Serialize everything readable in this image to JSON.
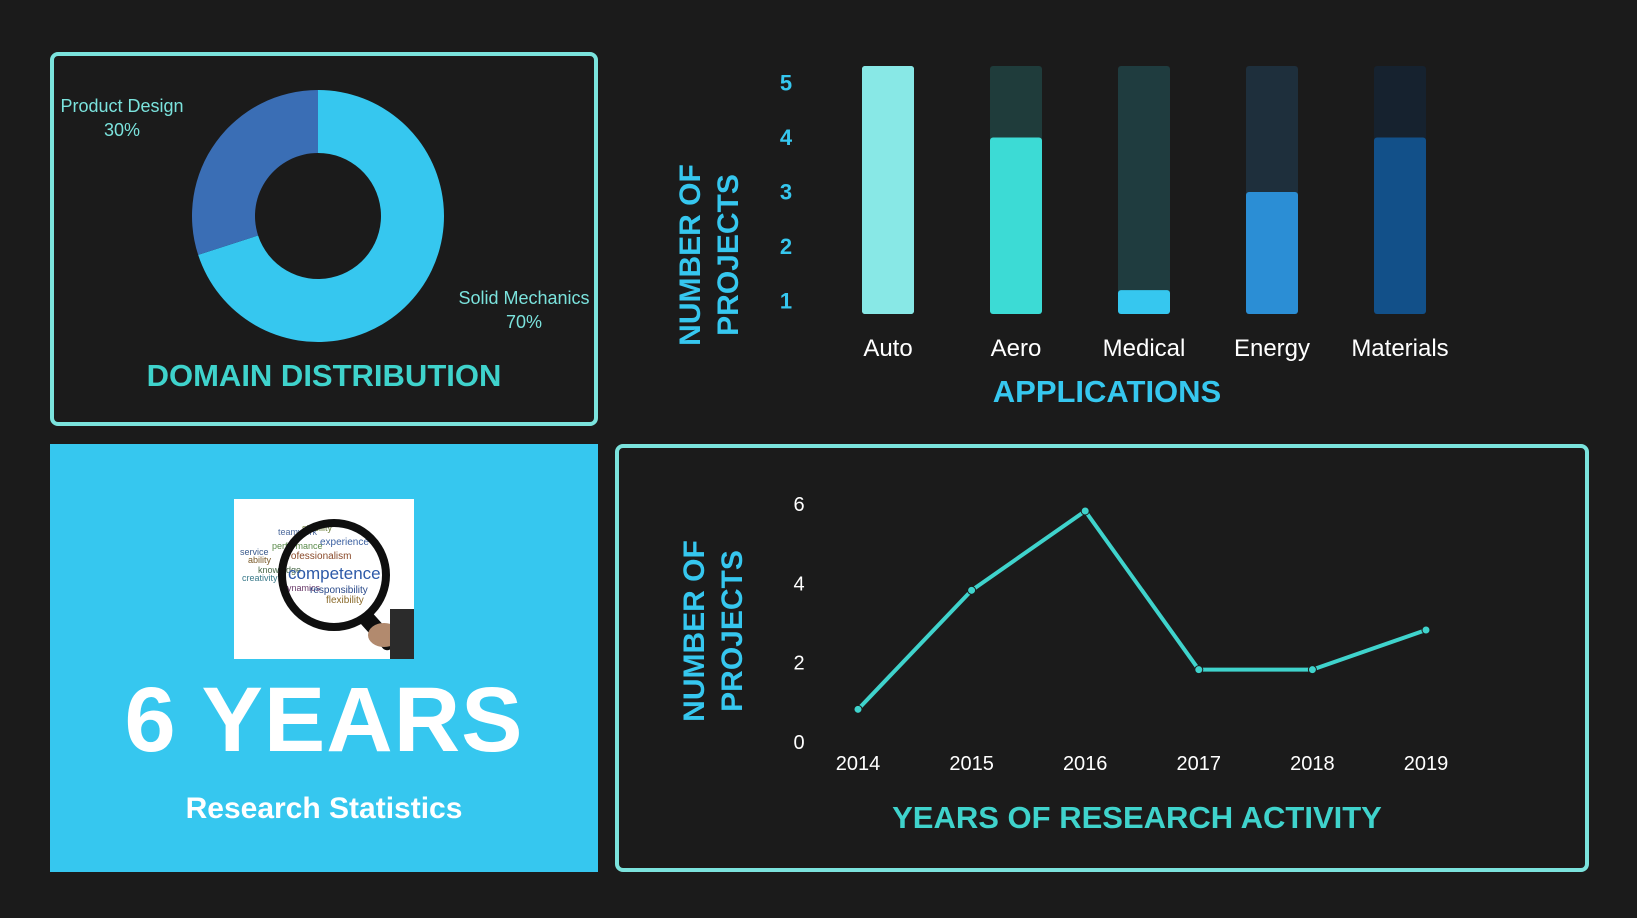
{
  "colors": {
    "background": "#1b1b1b",
    "accent_teal": "#3fd3cc",
    "accent_blue": "#36c7ef",
    "border": "#7be3dd"
  },
  "domain_panel": {
    "title": "DOMAIN DISTRIBUTION"
  },
  "stat_panel": {
    "big_value": "6 YEARS",
    "label": "Research Statistics",
    "image_words": [
      "teamwork",
      "stability",
      "service",
      "performance",
      "experience",
      "ability",
      "professionalism",
      "knowledge",
      "competence",
      "creativity",
      "dynamics",
      "responsibility",
      "flexibility"
    ],
    "image_icon": "magnifying-glass-icon"
  },
  "chart_data": [
    {
      "type": "pie",
      "title": "DOMAIN DISTRIBUTION",
      "donut": true,
      "slices": [
        {
          "label": "Solid Mechanics",
          "value": 70,
          "display": "70%",
          "color": "#36c7ef"
        },
        {
          "label": "Product Design",
          "value": 30,
          "display": "30%",
          "color": "#3a6eb5"
        }
      ]
    },
    {
      "type": "bar",
      "title": "",
      "xlabel": "APPLICATIONS",
      "ylabel": "NUMBER OF PROJECTS",
      "ylim": [
        1,
        5
      ],
      "yticks": [
        1,
        2,
        3,
        4,
        5
      ],
      "categories": [
        "Auto",
        "Aero",
        "Medical",
        "Energy",
        "Materials"
      ],
      "values": [
        5,
        4,
        1.2,
        3,
        4
      ],
      "colors": [
        "#88e8e6",
        "#3cdbd5",
        "#36c7ef",
        "#2b8ed5",
        "#125089"
      ],
      "track_colors": [
        "#88e8e6",
        "#1f3c3b",
        "#1f3c3f",
        "#1e2f3c",
        "#16222f"
      ],
      "grid": false
    },
    {
      "type": "line",
      "title": "",
      "xlabel": "YEARS OF RESEARCH ACTIVITY",
      "ylabel": "NUMBER OF PROJECTS",
      "x": [
        "2014",
        "2015",
        "2016",
        "2017",
        "2018",
        "2019"
      ],
      "y": [
        1,
        4,
        6,
        2,
        2,
        3
      ],
      "ylim": [
        0,
        6
      ],
      "yticks": [
        0,
        2,
        4,
        6
      ],
      "color": "#3fd3cc",
      "grid": false
    }
  ]
}
